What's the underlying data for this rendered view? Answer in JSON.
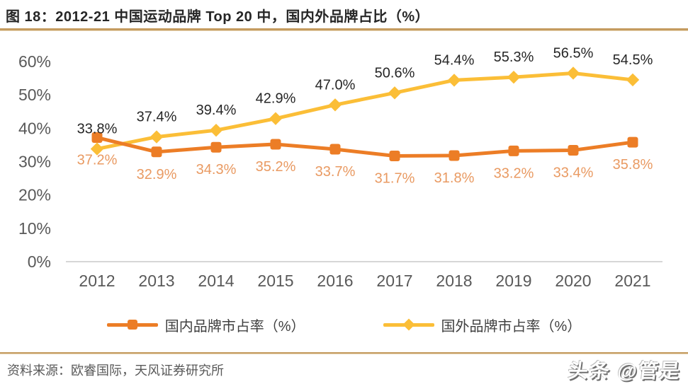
{
  "header": {
    "title": "图 18：2012-21 中国运动品牌 Top 20 中，国内外品牌占比（%）"
  },
  "chart_data": {
    "type": "line",
    "title": "2012-21 中国运动品牌 Top 20 中，国内外品牌占比（%）",
    "categories": [
      "2012",
      "2013",
      "2014",
      "2015",
      "2016",
      "2017",
      "2018",
      "2019",
      "2020",
      "2021"
    ],
    "series": [
      {
        "name": "国内品牌市占率（%）",
        "marker": "square",
        "color": "#ec7d26",
        "label_color": "#e99a62",
        "label_position": "below",
        "values": [
          37.2,
          32.9,
          34.3,
          35.2,
          33.7,
          31.7,
          31.8,
          33.2,
          33.4,
          35.8
        ],
        "labels": [
          "37.2%",
          "32.9%",
          "34.3%",
          "35.2%",
          "33.7%",
          "31.7%",
          "31.8%",
          "33.2%",
          "33.4%",
          "35.8%"
        ]
      },
      {
        "name": "国外品牌市占率（%）",
        "marker": "diamond",
        "color": "#fbbe37",
        "label_color": "#262626",
        "label_position": "above",
        "values": [
          33.8,
          37.4,
          39.4,
          42.9,
          47.0,
          50.6,
          54.4,
          55.3,
          56.5,
          54.5
        ],
        "labels": [
          "33.8%",
          "37.4%",
          "39.4%",
          "42.9%",
          "47.0%",
          "50.6%",
          "54.4%",
          "55.3%",
          "56.5%",
          "54.5%"
        ]
      }
    ],
    "y_ticks": [
      "0%",
      "10%",
      "20%",
      "30%",
      "40%",
      "50%",
      "60%"
    ],
    "y_tick_values": [
      0,
      10,
      20,
      30,
      40,
      50,
      60
    ],
    "ylim": [
      0,
      60
    ],
    "xlabel": "",
    "ylabel": "",
    "grid": false,
    "legend_position": "bottom"
  },
  "footer": {
    "source": "资料来源：欧睿国际，天风证券研究所",
    "watermark": "头条 @管是"
  },
  "colors": {
    "divider_gold": "#c49b5f",
    "axis_line": "#d6d6d6",
    "tick_text": "#595959",
    "legend_text": "#404040",
    "title_text": "#262626",
    "domestic_orange": "#ec7d26",
    "foreign_gold": "#fbbe37",
    "domestic_label_orange": "#e99a62"
  }
}
